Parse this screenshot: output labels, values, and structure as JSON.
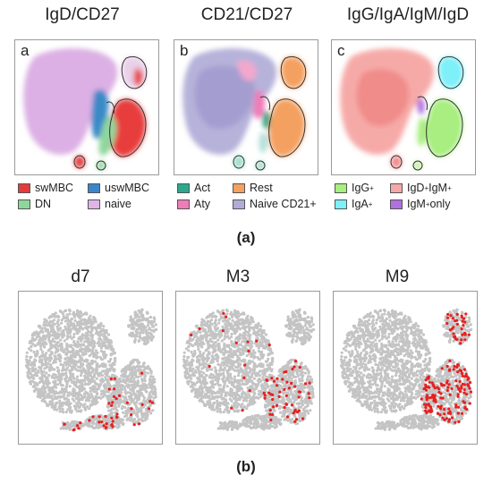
{
  "row_a": {
    "titles": [
      "IgD/CD27",
      "CD21/CD27",
      "IgG/IgA/IgM/IgD"
    ],
    "letters": [
      "a",
      "b",
      "c"
    ],
    "legend_a": [
      {
        "label": "swMBC",
        "color": "#e53a3a"
      },
      {
        "label": "uswMBC",
        "color": "#3a86c8"
      },
      {
        "label": "DN",
        "color": "#8fd69a"
      },
      {
        "label": "naive",
        "color": "#e0b4e6"
      }
    ],
    "legend_b": [
      {
        "label": "Act",
        "color": "#2ea88a"
      },
      {
        "label": "Rest",
        "color": "#f4a060"
      },
      {
        "label": "Aty",
        "color": "#f07cb8"
      },
      {
        "label": "Naive CD21+",
        "color": "#b0acd6"
      }
    ],
    "legend_c": [
      {
        "label": "IgG",
        "sup": "+",
        "color": "#a8ee80"
      },
      {
        "label": "IgD",
        "sup": "+",
        "label2": "IgM",
        "sup2": "+",
        "color": "#f4a8a8"
      },
      {
        "label": "IgA",
        "sup": "+",
        "color": "#7ef0f8"
      },
      {
        "label": "IgM",
        "sup": "+",
        "label2": " only",
        "color": "#b070e0"
      }
    ],
    "caption": "(a)"
  },
  "row_b": {
    "titles": [
      "d7",
      "M3",
      "M9"
    ],
    "caption": "(b)",
    "dot_color": "#e82020",
    "cell_color": "#c4c4c4"
  }
}
